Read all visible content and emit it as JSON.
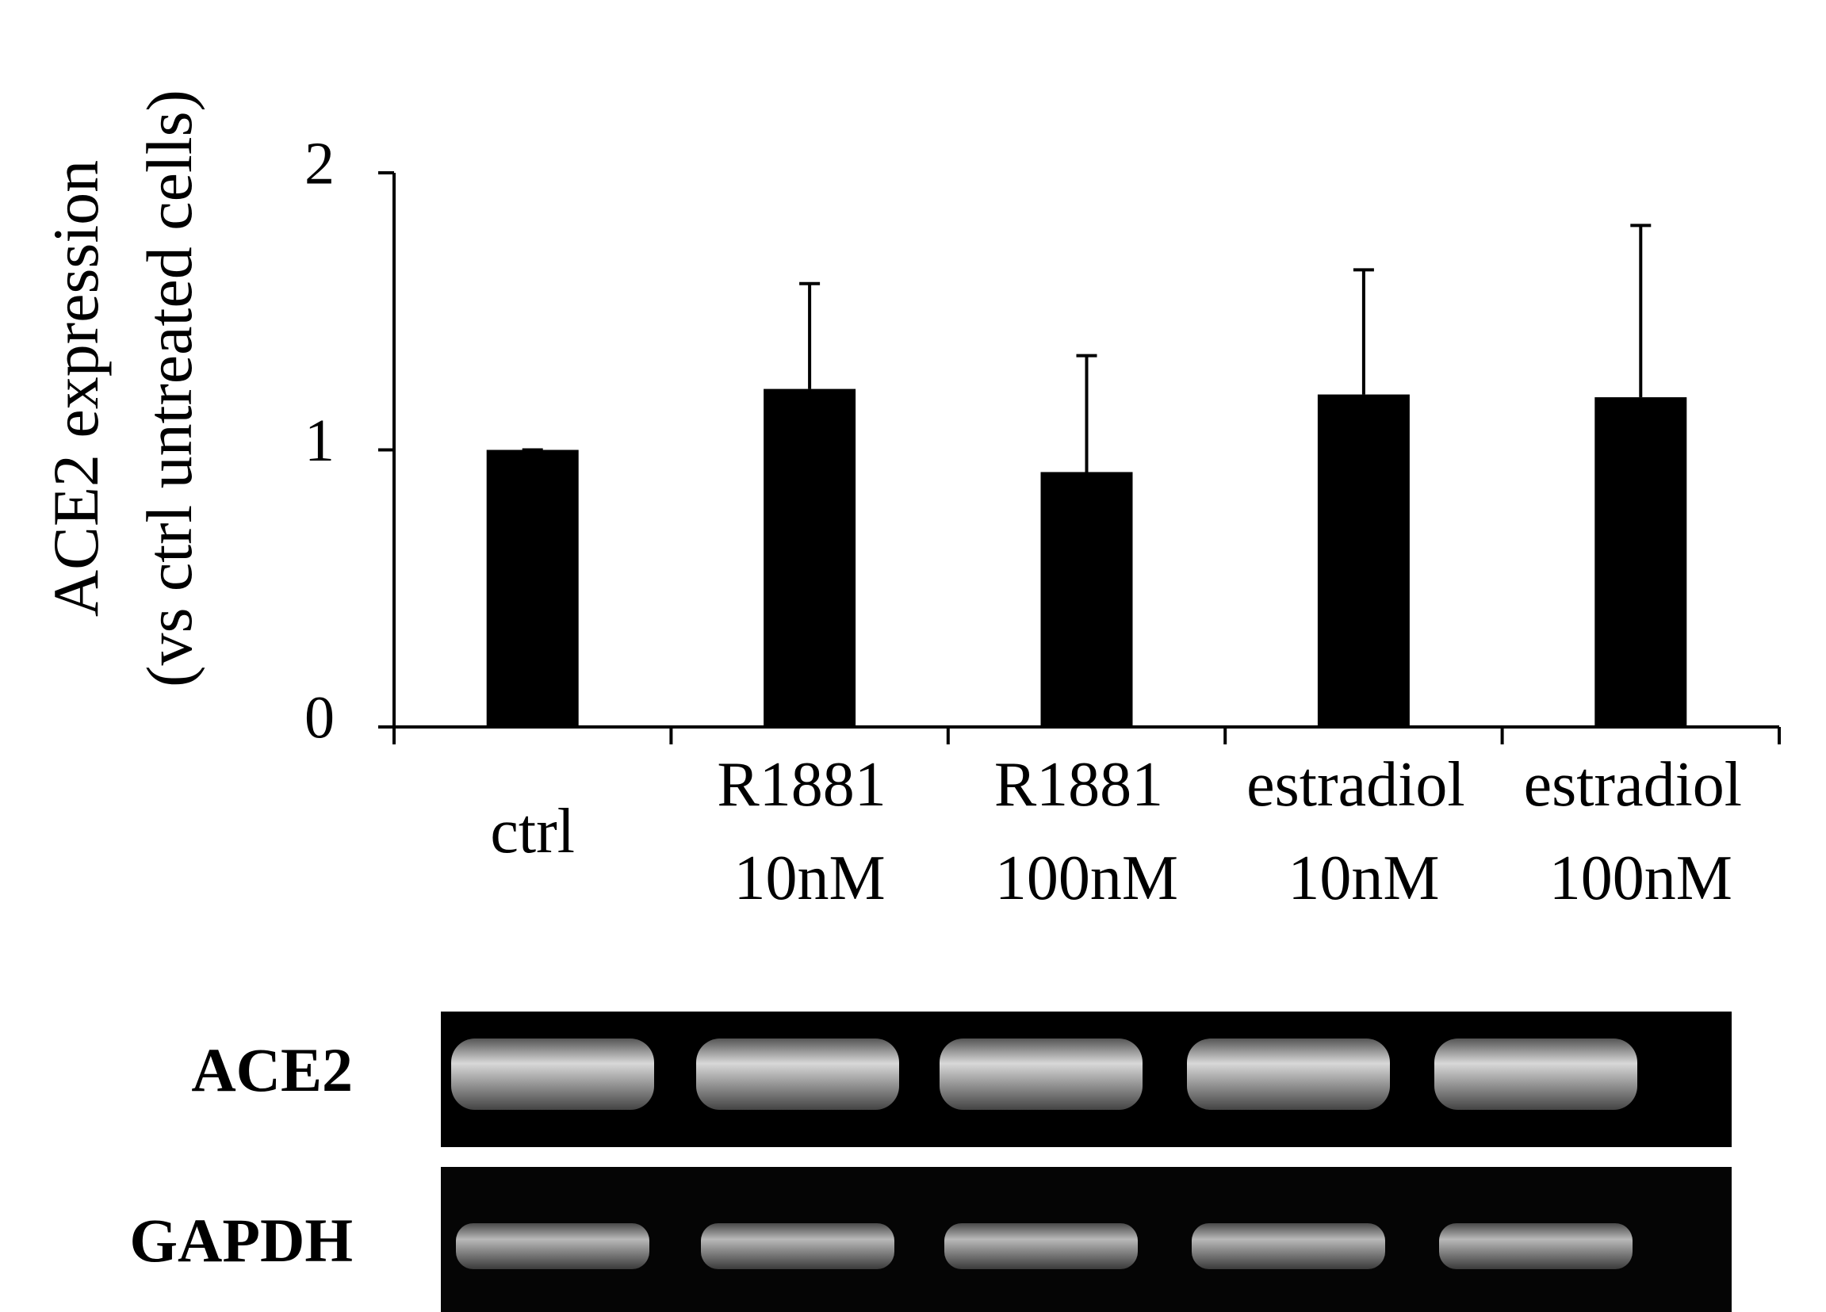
{
  "chart_data": {
    "type": "bar",
    "ylabel": [
      "ACE2 expression",
      "(vs ctrl untreated cells)"
    ],
    "categories": [
      "ctrl",
      "R1881 10nM",
      "R1881 100nM",
      "estradiol 10nM",
      "estradiol 100nM"
    ],
    "values": [
      1.0,
      1.22,
      0.92,
      1.2,
      1.19
    ],
    "errors": [
      0.0,
      0.38,
      0.42,
      0.45,
      0.62
    ],
    "color": "#000000",
    "ylim": [
      0,
      2
    ],
    "yticks": [
      0,
      1,
      2
    ],
    "grid": false
  },
  "blot": {
    "rows": [
      "ACE2",
      "GAPDH"
    ]
  }
}
